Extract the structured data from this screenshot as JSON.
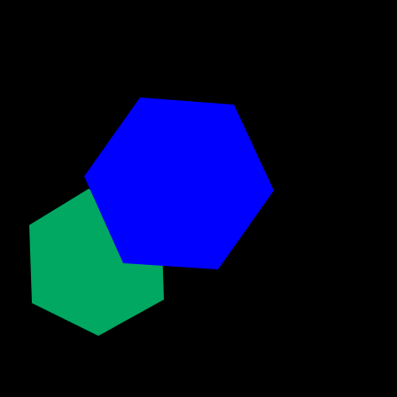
{
  "scene": {
    "background_color": "#000000",
    "shapes": [
      {
        "name": "green-hexagon",
        "shape": "hexagon",
        "color": "#00A862"
      },
      {
        "name": "blue-hexagon",
        "shape": "hexagon",
        "color": "#0000FF"
      }
    ]
  }
}
